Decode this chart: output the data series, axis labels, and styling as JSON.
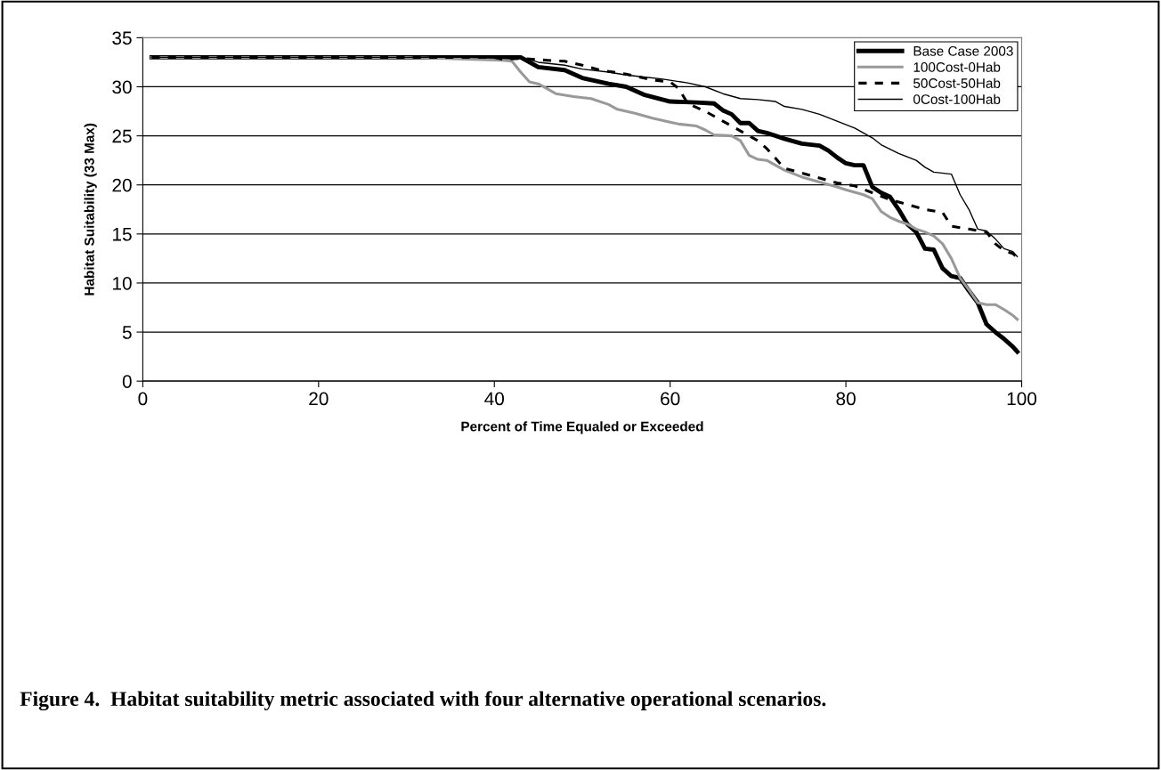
{
  "chart_data": {
    "type": "line",
    "xlabel": "Percent of Time Equaled or Exceeded",
    "ylabel": "Habitat Suitability (33 Max)",
    "xlim": [
      0,
      100
    ],
    "xticks": [
      0,
      20,
      40,
      60,
      80,
      100
    ],
    "ylim": [
      0,
      35
    ],
    "yticks": [
      0,
      5,
      10,
      15,
      20,
      25,
      30,
      35
    ],
    "grid": "y",
    "legend": "top right",
    "marker": "none",
    "annotations": [
      "Figure 4.  Habitat suitability metric associated with four alternative operational scenarios."
    ],
    "series": [
      {
        "name": "Base Case 2003",
        "color": "#000000",
        "line_style": "solid",
        "x": [
          1,
          43,
          44,
          45,
          48,
          50,
          53,
          55,
          57,
          60,
          63,
          65,
          66,
          67,
          68,
          69,
          70,
          71,
          73,
          75,
          77,
          78,
          79,
          80,
          81,
          82,
          83,
          84,
          85,
          86,
          87,
          88,
          89,
          90,
          91,
          92,
          93,
          94,
          95,
          96,
          97,
          98,
          99,
          99.5
        ],
        "values": [
          33,
          33,
          32.5,
          32,
          31.7,
          30.9,
          30.3,
          30,
          29.2,
          28.5,
          28.4,
          28.3,
          27.6,
          27.2,
          26.3,
          26.3,
          25.5,
          25.3,
          24.7,
          24.2,
          24,
          23.5,
          22.8,
          22.2,
          22,
          22,
          19.8,
          19.2,
          18.8,
          17.5,
          16,
          15.2,
          13.5,
          13.4,
          11.5,
          10.7,
          10.5,
          9.2,
          8,
          5.8,
          5,
          4.3,
          3.5,
          3
        ]
      },
      {
        "name": "100Cost-0Hab",
        "color": "#999999",
        "line_style": "solid",
        "x": [
          1,
          30,
          41,
          42,
          43,
          44,
          45,
          46,
          47,
          49,
          51,
          53,
          54,
          56,
          58,
          60,
          61,
          63,
          64,
          65,
          67,
          68,
          69,
          70,
          71,
          72,
          73,
          75,
          77,
          79,
          80,
          82,
          83,
          84,
          85,
          86,
          87,
          88,
          89,
          90,
          91,
          92,
          93,
          94,
          95,
          96,
          97,
          98,
          99,
          99.5
        ],
        "values": [
          33,
          33,
          32.7,
          32.6,
          31.5,
          30.5,
          30.3,
          29.8,
          29.3,
          29,
          28.8,
          28.2,
          27.7,
          27.3,
          26.8,
          26.4,
          26.2,
          26,
          25.6,
          25.1,
          25,
          24.5,
          23,
          22.6,
          22.5,
          22,
          21.5,
          20.8,
          20.3,
          19.8,
          19.5,
          19,
          18.6,
          17.3,
          16.7,
          16.3,
          16,
          15.5,
          15.2,
          14.8,
          14,
          12.5,
          10.5,
          9.3,
          8,
          7.8,
          7.8,
          7.3,
          6.7,
          6.3
        ]
      },
      {
        "name": "50Cost-50Hab",
        "color": "#000000",
        "line_style": "dashed",
        "x": [
          1,
          40,
          41,
          43,
          46,
          48,
          50,
          52,
          55,
          58,
          60,
          61,
          62,
          64,
          66,
          68,
          70,
          71,
          73,
          75,
          77,
          79,
          81,
          83,
          85,
          87,
          89,
          91,
          92,
          94,
          96,
          97,
          98,
          99,
          99.5
        ],
        "values": [
          33,
          33,
          32.8,
          32.9,
          32.7,
          32.6,
          32.2,
          31.7,
          31.3,
          30.7,
          30.5,
          29.8,
          28.3,
          27.5,
          26.5,
          25.5,
          24.5,
          23.7,
          21.7,
          21.2,
          20.7,
          20.2,
          19.9,
          19.2,
          18.5,
          18,
          17.5,
          17.2,
          15.8,
          15.5,
          15.2,
          14,
          13.3,
          13,
          12.6
        ]
      },
      {
        "name": "0Cost-100Hab",
        "color": "#000000",
        "line_style": "solid",
        "x": [
          1,
          43,
          45,
          48,
          50,
          53,
          55,
          57,
          59,
          62,
          64,
          66,
          68,
          70,
          72,
          73,
          75,
          77,
          79,
          81,
          82,
          83,
          84,
          86,
          88,
          89,
          90,
          92,
          93,
          94,
          95,
          96,
          97,
          98,
          99,
          99.5
        ],
        "values": [
          33,
          33,
          32.5,
          32.2,
          31.8,
          31.5,
          31.2,
          31,
          30.8,
          30.4,
          30,
          29.3,
          28.8,
          28.7,
          28.5,
          28,
          27.7,
          27.2,
          26.5,
          25.8,
          25.3,
          24.8,
          24.1,
          23.2,
          22.5,
          21.8,
          21.3,
          21.1,
          19,
          17.5,
          15.5,
          15.3,
          14.5,
          13.5,
          13.2,
          12.7
        ]
      }
    ]
  }
}
